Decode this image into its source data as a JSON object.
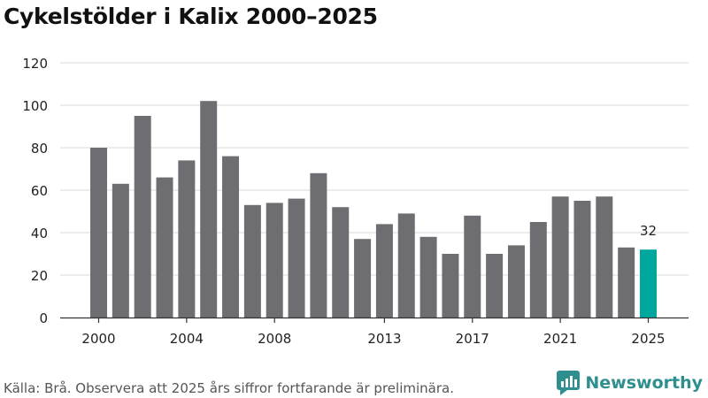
{
  "title": "Cykelstölder i Kalix 2000–2025",
  "source": "Källa: Brå. Observera att 2025 års siffror fortfarande är preliminära.",
  "brand": {
    "name": "Newsworthy",
    "icon": "newsworthy-logo-icon"
  },
  "colors": {
    "bar": "#6e6d72",
    "highlight": "#00a79d",
    "grid": "#d9d9d9",
    "axis": "#333333"
  },
  "chart_data": {
    "type": "bar",
    "title": "Cykelstölder i Kalix 2000–2025",
    "xlabel": "",
    "ylabel": "",
    "ylim": [
      0,
      120
    ],
    "yticks": [
      0,
      20,
      40,
      60,
      80,
      100,
      120
    ],
    "xticks": [
      "2000",
      "2004",
      "2008",
      "2013",
      "2017",
      "2021",
      "2025"
    ],
    "grid": true,
    "categories": [
      "2000",
      "2001",
      "2002",
      "2003",
      "2004",
      "2005",
      "2006",
      "2007",
      "2008",
      "2009",
      "2010",
      "2011",
      "2012",
      "2013",
      "2014",
      "2015",
      "2016",
      "2017",
      "2018",
      "2019",
      "2020",
      "2021",
      "2022",
      "2023",
      "2024",
      "2025"
    ],
    "values": [
      80,
      63,
      95,
      66,
      74,
      102,
      76,
      53,
      54,
      56,
      68,
      52,
      37,
      44,
      49,
      38,
      30,
      48,
      30,
      34,
      45,
      57,
      55,
      57,
      33,
      32
    ],
    "highlight": {
      "category": "2025",
      "label": "32"
    }
  }
}
